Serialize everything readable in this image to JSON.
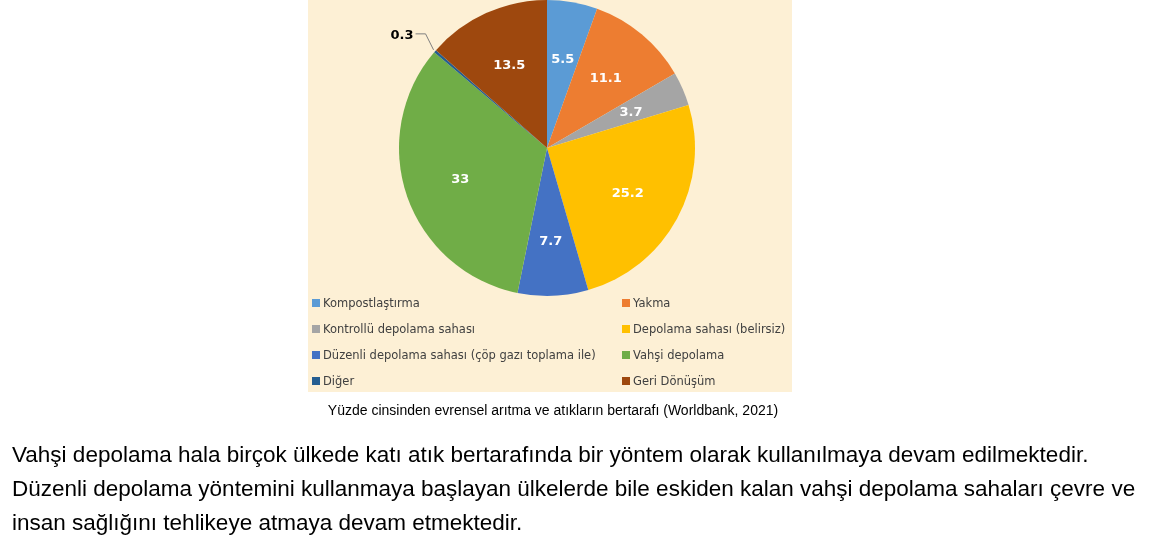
{
  "chart_data": {
    "type": "pie",
    "categories": [
      "Kompostlaştırma",
      "Yakma",
      "Kontrollü depolama sahası",
      "Depolama sahası (belirsiz)",
      "Düzenli depolama sahası (çöp gazı toplama ile)",
      "Vahşi depolama",
      "Diğer",
      "Geri Dönüşüm"
    ],
    "values": [
      5.5,
      11.1,
      3.7,
      25.2,
      7.7,
      33,
      0.3,
      13.5
    ],
    "colors": [
      "#5b9bd5",
      "#ed7d31",
      "#a5a5a5",
      "#ffc000",
      "#4472c4",
      "#70ad47",
      "#255e91",
      "#9e480e"
    ],
    "data_labels": true,
    "legend": "bottom",
    "annotations": [
      "Yüzde cinsinden evrensel arıtma ve atıkların bertarafı (Worldbank, 2021)",
      "Vahşi depolama hala birçok ülkede katı atık bertarafında bir yöntem olarak kullanılmaya devam edilmektedir. Düzenli depolama yöntemini kullanmaya başlayan ülkelerde bile eskiden kalan vahşi depolama sahaları çevre ve insan sağlığını tehlikeye atmaya devam etmektedir."
    ]
  }
}
